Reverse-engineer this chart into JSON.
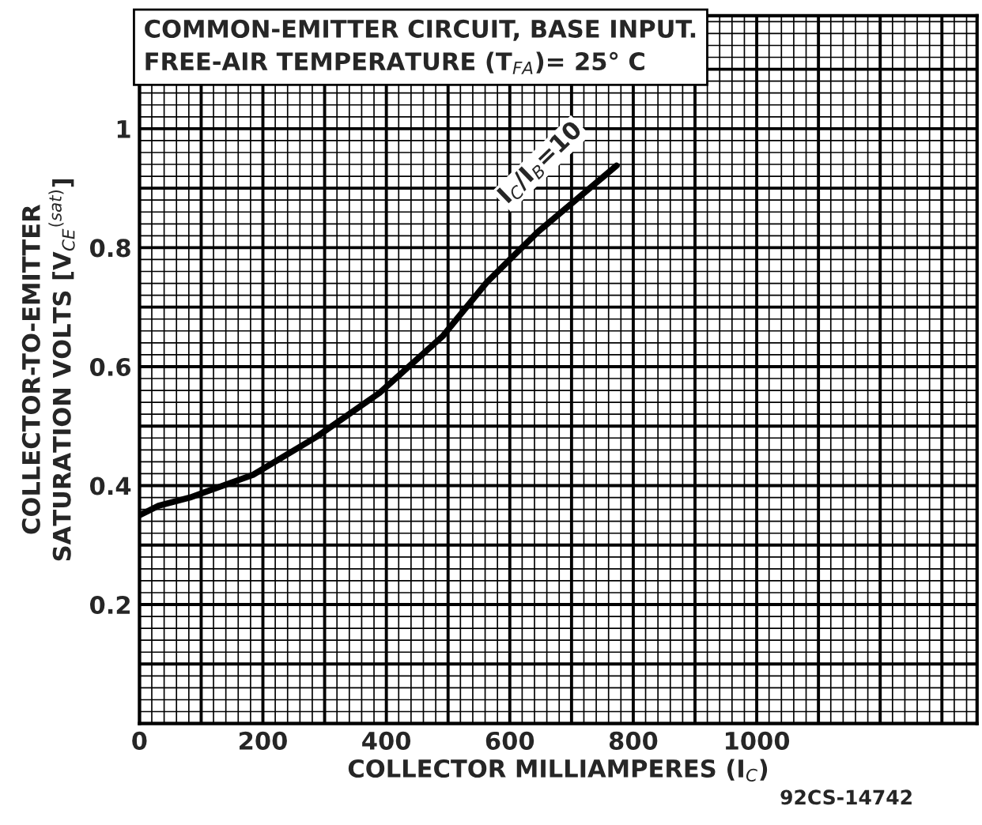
{
  "chart_data": {
    "type": "line",
    "title": "COMMON-EMITTER CIRCUIT, BASE INPUT.",
    "subtitle": "FREE-AIR TEMPERATURE (T$_{FA}$)= 25° C",
    "xlabel": "COLLECTOR MILLIAMPERES (I$_{C}$)",
    "ylabel": "COLLECTOR-TO-EMITTER\nSATURATION VOLTS [V$_{CE}$$^{(sat)}$]",
    "series": [
      {
        "color": "#000000",
        "x": [
          0,
          31,
          82,
          184,
          287,
          389,
          492,
          563,
          645,
          773
        ],
        "values": [
          0.35,
          0.366,
          0.38,
          0.418,
          0.482,
          0.556,
          0.652,
          0.742,
          0.826,
          0.938
        ]
      }
    ],
    "annotations": [
      {
        "text": "I$_{C}$/I$_{B}$=10",
        "x": 700,
        "y": 0.89
      },
      "92CS-14742"
    ],
    "xlim": [
      0,
      1357
    ],
    "ylim": [
      0,
      1.19
    ],
    "xticks": [
      0,
      200,
      400,
      600,
      800,
      1000
    ],
    "yticks": [
      {
        "value": 0.2,
        "label": "0.2"
      },
      {
        "value": 0.4,
        "label": "0.4"
      },
      {
        "value": 0.6,
        "label": "0.6"
      },
      {
        "value": 0.8,
        "label": "0.8"
      },
      {
        "value": 1,
        "label": "1"
      }
    ],
    "grid": true,
    "legend": false,
    "marker": "none",
    "line_style": "solid"
  }
}
